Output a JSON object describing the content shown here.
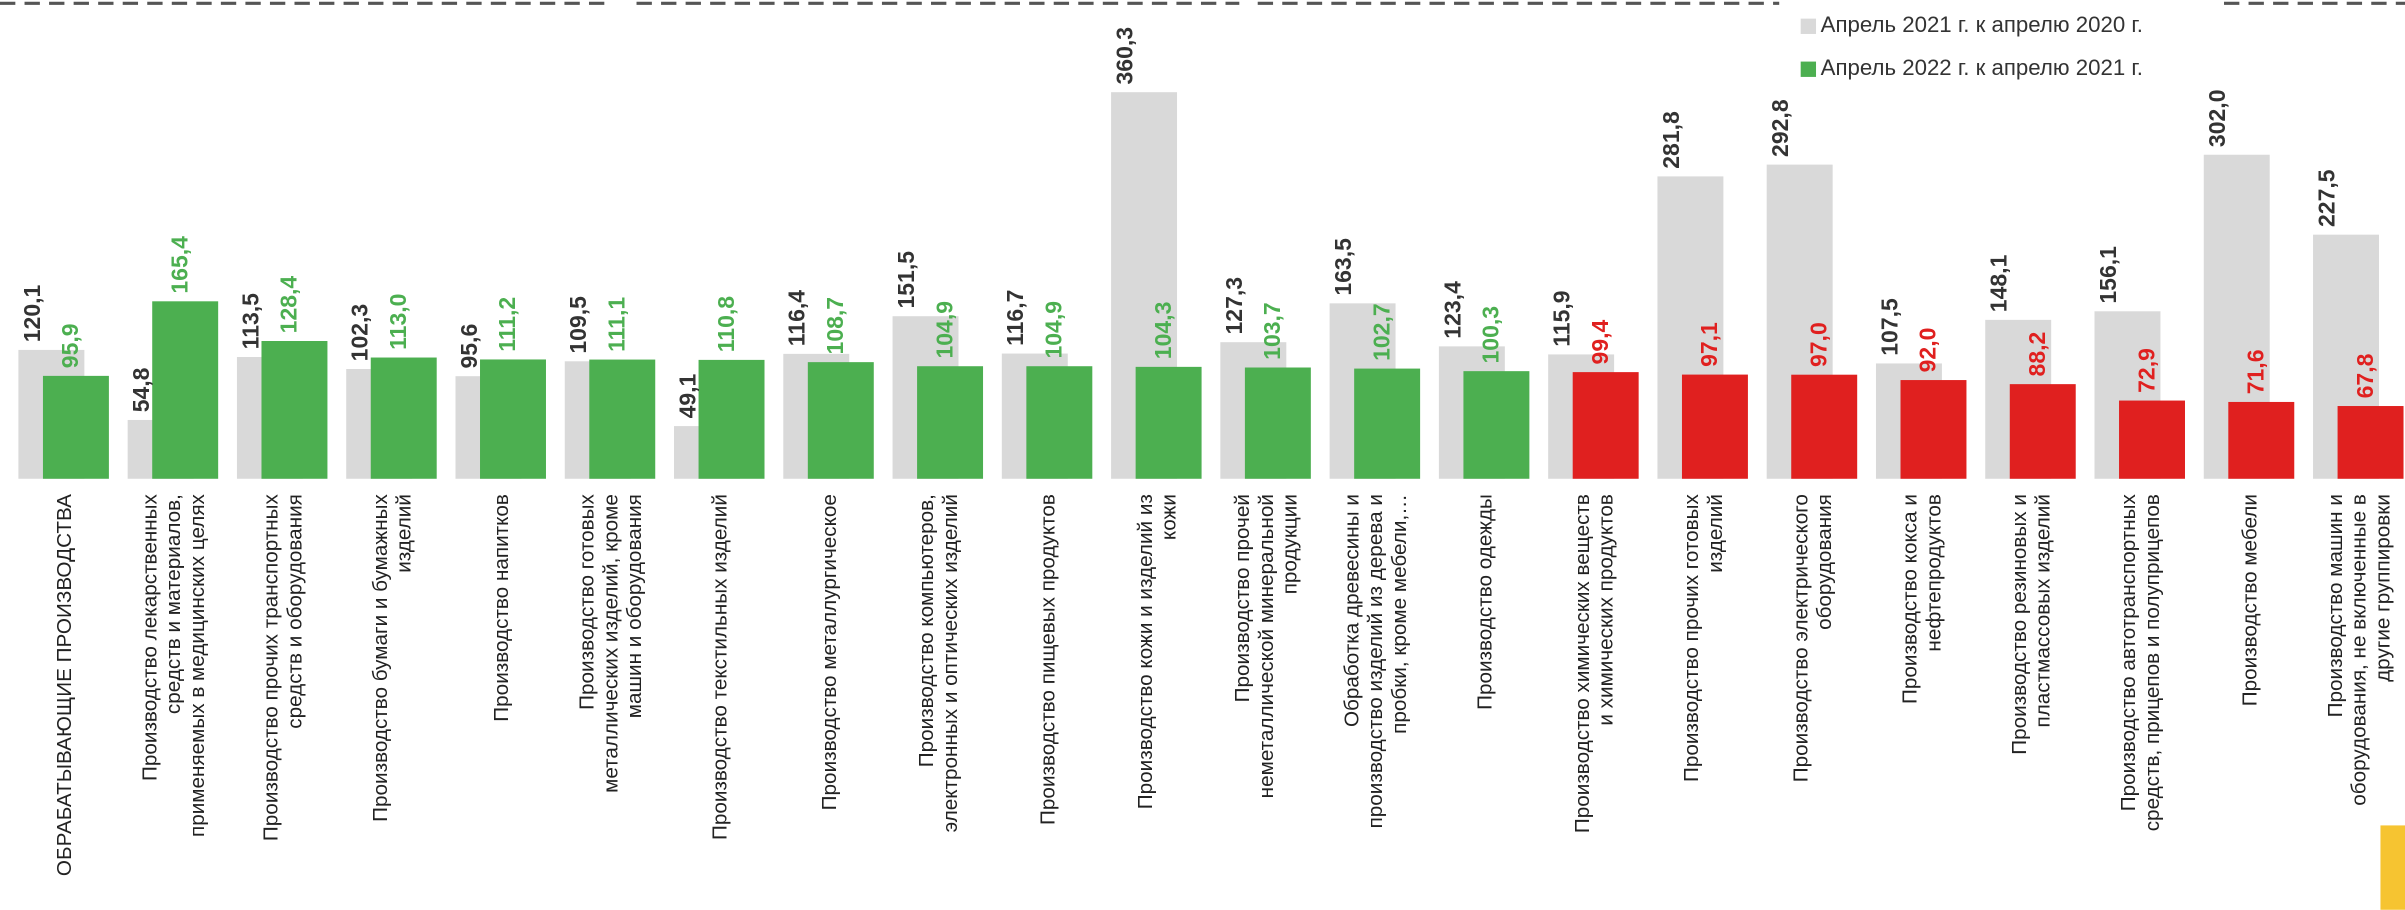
{
  "chart_data": {
    "type": "bar",
    "categories": [
      "ОБРАБАТЫВАЮЩИЕ ПРОИЗВОДСТВА",
      "Производство лекарственных средств и материалов, применяемых в медицинских целях",
      "Производство прочих транспортных средств и оборудования",
      "Производство бумаги и бумажных изделий",
      "Производство напитков",
      "Производство готовых металлических изделий, кроме машин и оборудования",
      "Производство текстильных изделий",
      "Производство металлургическое",
      "Производство компьютеров, электронных и оптических изделий",
      "Производство пищевых продуктов",
      "Производство кожи и изделий из кожи",
      "Производство прочей неметаллической минеральной продукции",
      "Обработка древесины и производство изделий из дерева и пробки, кроме мебели,…",
      "Производство одежды",
      "Производство химических веществ и химических продуктов",
      "Производство прочих готовых изделий",
      "Производство электрического оборудования",
      "Производство кокса и нефтепродуктов",
      "Производство резиновых и пластмассовых изделий",
      "Производство автотранспортных средств, прицепов и полуприцепов",
      "Производство мебели",
      "Производство машин и оборудования, не включенные в другие группировки"
    ],
    "series": [
      {
        "name": "Апрель 2021 г. к апрелю 2020 г.",
        "color": "#d9d9d9",
        "values": [
          120.1,
          54.8,
          113.5,
          102.3,
          95.6,
          109.5,
          49.1,
          116.4,
          151.5,
          116.7,
          360.3,
          127.3,
          163.5,
          123.4,
          115.9,
          281.8,
          292.8,
          107.5,
          148.1,
          156.1,
          302.0,
          227.5
        ],
        "value_labels": [
          "120,1",
          "54,8",
          "113,5",
          "102,3",
          "95,6",
          "109,5",
          "49,1",
          "116,4",
          "151,5",
          "116,7",
          "360,3",
          "127,3",
          "163,5",
          "123,4",
          "115,9",
          "281,8",
          "292,8",
          "107,5",
          "148,1",
          "156,1",
          "302,0",
          "227,5"
        ],
        "label_color": "#333333"
      },
      {
        "name": "Апрель 2022 г. к апрелю 2021 г.",
        "color": "#4caf50",
        "values": [
          95.9,
          165.4,
          128.4,
          113.0,
          111.2,
          111.1,
          110.8,
          108.7,
          104.9,
          104.9,
          104.3,
          103.7,
          102.7,
          100.3,
          99.4,
          97.1,
          97.0,
          92.0,
          88.2,
          72.9,
          71.6,
          67.8
        ],
        "value_labels": [
          "95,9",
          "165,4",
          "128,4",
          "113,0",
          "111,2",
          "111,1",
          "110,8",
          "108,7",
          "104,9",
          "104,9",
          "104,3",
          "103,7",
          "102,7",
          "100,3",
          "99,4",
          "97,1",
          "97,0",
          "92,0",
          "88,2",
          "72,9",
          "71,6",
          "67,8"
        ],
        "colors": [
          "#4caf50",
          "#4caf50",
          "#4caf50",
          "#4caf50",
          "#4caf50",
          "#4caf50",
          "#4caf50",
          "#4caf50",
          "#4caf50",
          "#4caf50",
          "#4caf50",
          "#4caf50",
          "#4caf50",
          "#4caf50",
          "#e0201f",
          "#e0201f",
          "#e0201f",
          "#e0201f",
          "#e0201f",
          "#e0201f",
          "#e0201f",
          "#e0201f"
        ]
      }
    ],
    "ylim": [
      0,
      446
    ],
    "legend": "top-right"
  }
}
